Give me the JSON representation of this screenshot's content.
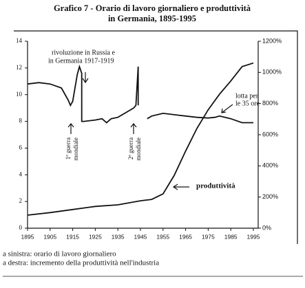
{
  "chart_data": {
    "type": "line",
    "title": "Grafico 7 - Orario di lavoro giornaliero e produttività",
    "subtitle": "in Germania, 1895-1995",
    "xlim": [
      1895,
      1995
    ],
    "xticks": [
      1895,
      1905,
      1915,
      1925,
      1935,
      1945,
      1955,
      1965,
      1975,
      1985,
      1995
    ],
    "ylim": [
      0,
      14
    ],
    "yticks": [
      0,
      2,
      4,
      6,
      8,
      10,
      12,
      14
    ],
    "y2lim": [
      0,
      1200
    ],
    "y2ticks": [
      {
        "value": 0,
        "label": "0%"
      },
      {
        "value": 200,
        "label": "200%"
      },
      {
        "value": 400,
        "label": "400%"
      },
      {
        "value": 600,
        "label": "600%"
      },
      {
        "value": 800,
        "label": "800%"
      },
      {
        "value": 1000,
        "label": "1000%"
      },
      {
        "value": 1200,
        "label": "1200%"
      }
    ],
    "series": [
      {
        "color": "#111111",
        "x": [
          1895,
          1900,
          1905,
          1910,
          1913,
          1914,
          1915,
          1917,
          1918,
          1919,
          1919,
          1920,
          1925,
          1928,
          1930,
          1932,
          1935,
          1938,
          1940,
          1942,
          1943,
          1944,
          1944,
          1946,
          1948,
          1950,
          1955,
          1960,
          1965,
          1970,
          1975,
          1978,
          1980,
          1985,
          1990,
          1995
        ],
        "values": [
          10.8,
          10.9,
          10.8,
          10.5,
          9.6,
          9.2,
          9.5,
          11.5,
          12.1,
          11.6,
          8.0,
          8.0,
          8.1,
          8.2,
          7.9,
          8.2,
          8.3,
          8.6,
          8.8,
          9.0,
          9.2,
          12.1,
          9.2,
          null,
          8.2,
          8.4,
          8.6,
          8.5,
          8.4,
          8.3,
          8.25,
          8.3,
          8.4,
          8.2,
          7.9,
          7.9
        ]
      },
      {
        "color": "#111111",
        "axis": "y2",
        "x": [
          1895,
          1905,
          1915,
          1925,
          1935,
          1945,
          1950,
          1955,
          1960,
          1965,
          1970,
          1975,
          1980,
          1985,
          1990,
          1995
        ],
        "values": [
          84,
          100,
          120,
          140,
          150,
          176,
          185,
          220,
          340,
          495,
          640,
          760,
          860,
          945,
          1037,
          1060
        ]
      }
    ],
    "annotations": [
      "rivoluzione in Russia e",
      "in Germania 1917-1919",
      "lotta per",
      "le 35 ore",
      "1ª guerra",
      "mondiale",
      "2ª guerra",
      "mondiale",
      "produttività"
    ],
    "notes": [
      "a sinistra: orario di lavoro giornaliero",
      "a destra: incremento della produttività nell'industria"
    ]
  }
}
